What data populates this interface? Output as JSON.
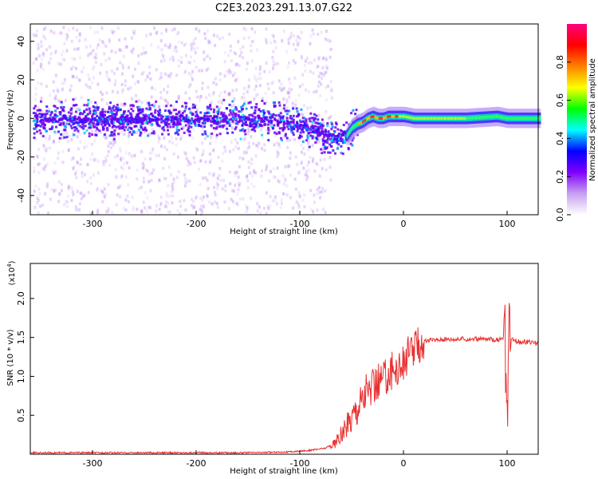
{
  "page_title": "C2E3.2023.291.13.07.G22",
  "chart_data": [
    {
      "type": "heatmap",
      "title": "C2E3.2023.291.13.07.G22",
      "xlabel": "Height of straight line (km)",
      "ylabel": "Frequency (Hz)",
      "xlim": [
        -360,
        130
      ],
      "ylim": [
        -50,
        49
      ],
      "x_ticks": [
        -300,
        -200,
        -100,
        0,
        100
      ],
      "x_tick_labels": [
        "-300",
        "-200",
        "-100",
        "0",
        "100"
      ],
      "y_ticks": [
        -40,
        -20,
        0,
        20,
        40
      ],
      "y_tick_labels": [
        "-40",
        "-20",
        "0",
        "20",
        "40"
      ],
      "grid": false,
      "ridge": {
        "x": [
          -360,
          -300,
          -200,
          -150,
          -120,
          -100,
          -90,
          -80,
          -70,
          -60,
          -55,
          -50,
          -45,
          -40,
          -35,
          -30,
          -25,
          -20,
          -15,
          -10,
          -5,
          0,
          10,
          30,
          60,
          90,
          100,
          130
        ],
        "y": [
          0,
          0,
          0,
          0,
          -1,
          -3,
          -5,
          -7,
          -9,
          -10,
          -9,
          -5,
          -3,
          -2,
          0,
          1,
          0,
          0,
          1,
          1,
          1,
          1,
          0,
          0,
          0,
          1,
          0,
          0
        ]
      },
      "colorbar": {
        "label": "Normalized spectral amplitude",
        "ticks": [
          0.0,
          0.2,
          0.4,
          0.6,
          0.8
        ],
        "tick_labels": [
          "0.0",
          "0.2",
          "0.4",
          "0.6",
          "0.8"
        ],
        "range": [
          0,
          1
        ],
        "colormap": [
          "#ffffff",
          "#c8a0f0",
          "#8000ff",
          "#0000ff",
          "#00ffff",
          "#00ff00",
          "#ffff00",
          "#ff8000",
          "#ff0000",
          "#ff0080"
        ]
      }
    },
    {
      "type": "line",
      "xlabel": "Height of straight line (km)",
      "ylabel": "SNR (10 * v/v)",
      "y_multiplier": "(x10",
      "y_multiplier_exp": "4",
      "xlim": [
        -360,
        130
      ],
      "ylim": [
        0,
        2.45
      ],
      "x_ticks": [
        -300,
        -200,
        -100,
        0,
        100
      ],
      "x_tick_labels": [
        "-300",
        "-200",
        "-100",
        "0",
        "100"
      ],
      "y_ticks": [
        0.5,
        1.0,
        1.5,
        2.0
      ],
      "y_tick_labels": [
        "0.5",
        "1.0",
        "1.5",
        "2.0"
      ],
      "grid": false,
      "series": [
        {
          "color": "#e83030",
          "x": [
            -360,
            -300,
            -200,
            -150,
            -110,
            -90,
            -75,
            -65,
            -55,
            -48,
            -42,
            -36,
            -30,
            -24,
            -18,
            -12,
            -6,
            0,
            5,
            12,
            20,
            30,
            40,
            60,
            80,
            95,
            98,
            100,
            102,
            105,
            110,
            120,
            130
          ],
          "y": [
            0.02,
            0.02,
            0.02,
            0.02,
            0.03,
            0.05,
            0.08,
            0.15,
            0.35,
            0.55,
            0.7,
            0.78,
            0.86,
            0.94,
            1.0,
            1.06,
            1.1,
            1.17,
            1.28,
            1.38,
            1.45,
            1.47,
            1.48,
            1.48,
            1.48,
            1.47,
            1.5,
            0.3,
            1.5,
            1.47,
            1.45,
            1.44,
            1.43
          ]
        }
      ]
    }
  ]
}
